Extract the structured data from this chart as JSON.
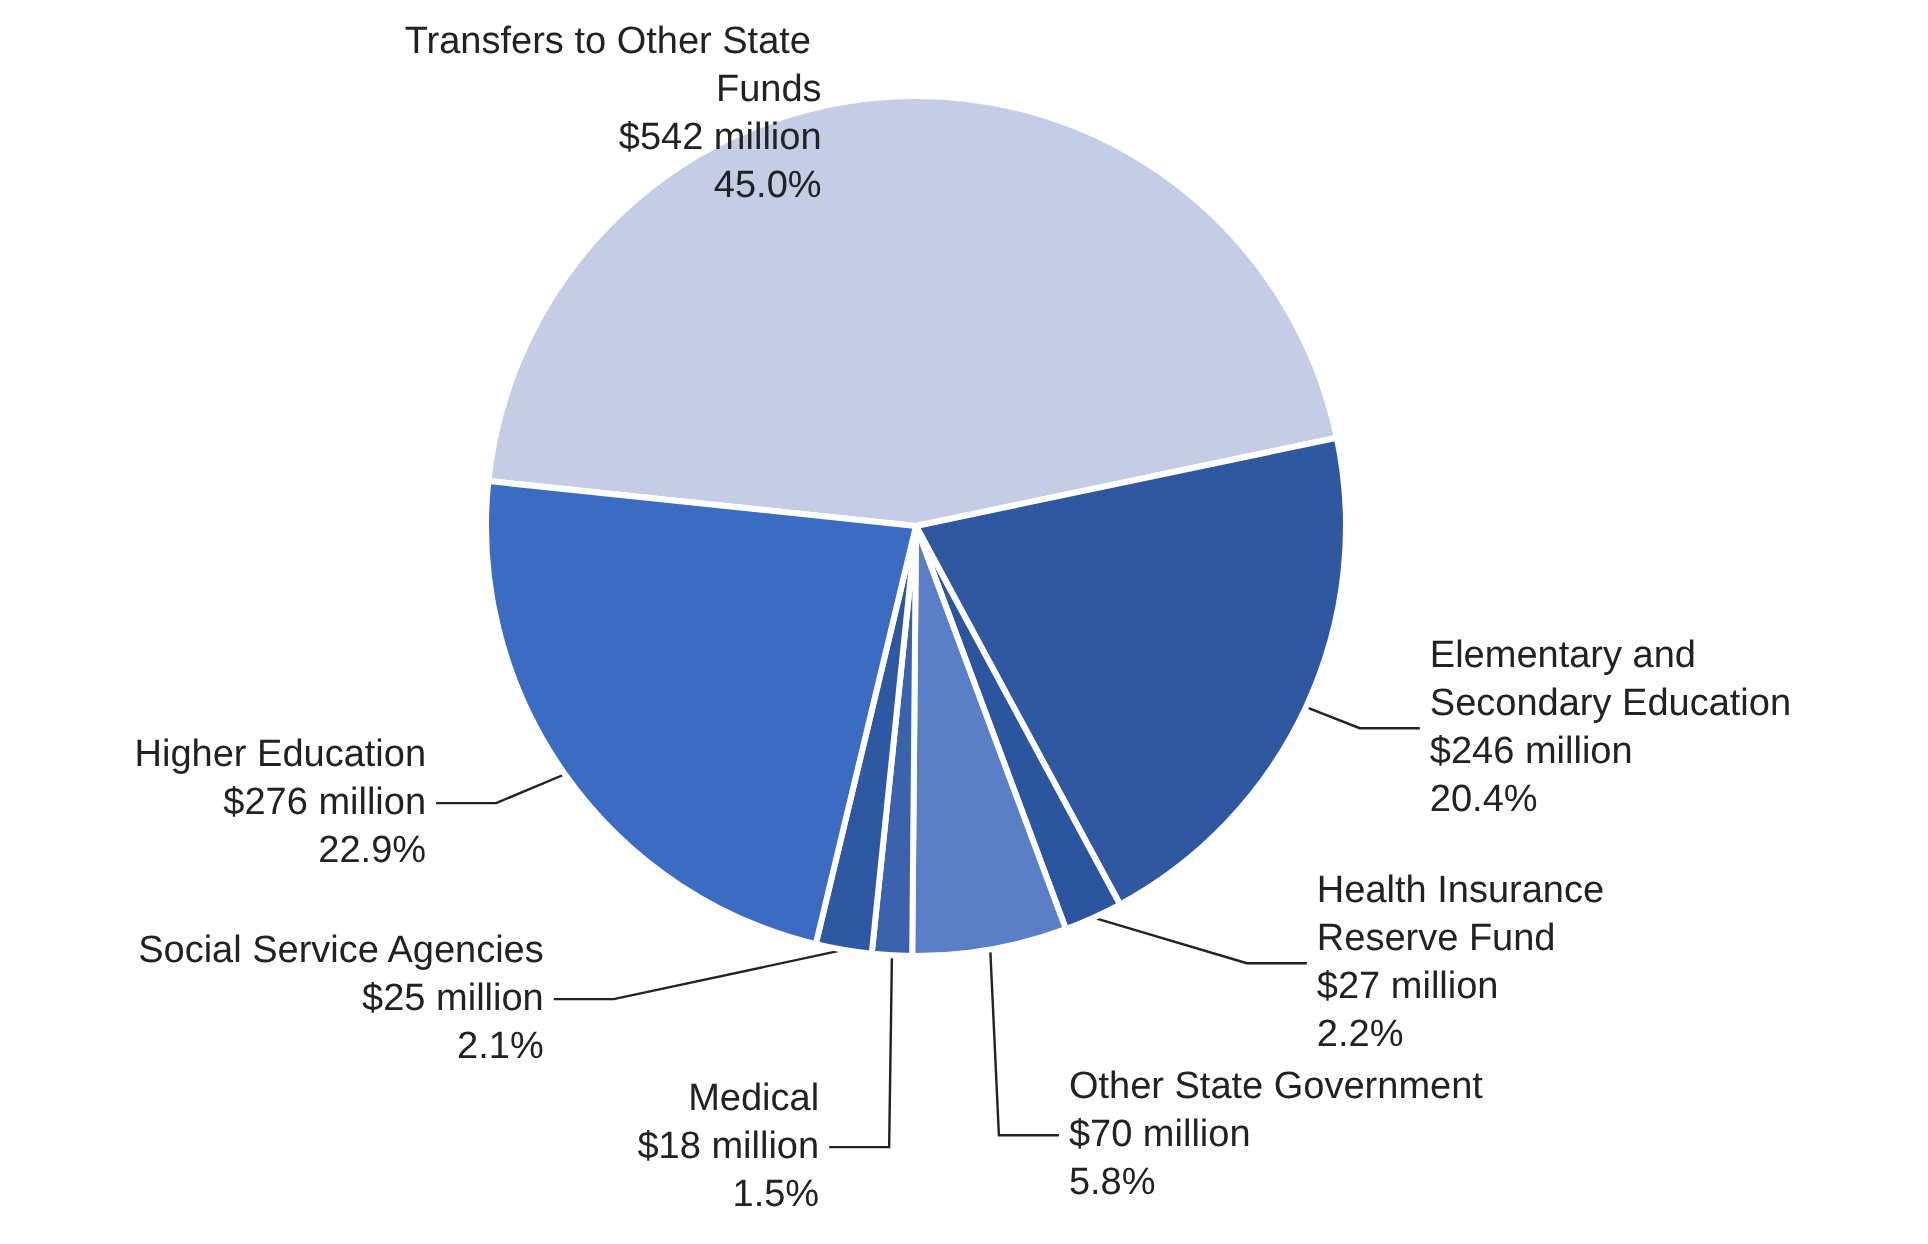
{
  "chart_data": {
    "type": "pie",
    "categories": [
      "Transfers to Other State Funds",
      "Elementary and Secondary Education",
      "Health Insurance Reserve Fund",
      "Other State Government",
      "Medical",
      "Social Service Agencies",
      "Higher Education"
    ],
    "values": [
      45.0,
      20.4,
      2.2,
      5.8,
      1.5,
      2.1,
      22.9
    ],
    "value_labels": [
      "$542 million\n45.0%",
      "$246 million\n20.4%",
      "$27 million\n2.2%",
      "$70 million\n5.8%",
      "$18 million\n1.5%",
      "$25 million\n2.1%",
      "$276 million\n22.9%"
    ],
    "colors": [
      "#c5cde6",
      "#2f58a0",
      "#2c55a0",
      "#5b7fc6",
      "#3a62ad",
      "#2f58a3",
      "#3b6cc2"
    ],
    "legend": false
  }
}
